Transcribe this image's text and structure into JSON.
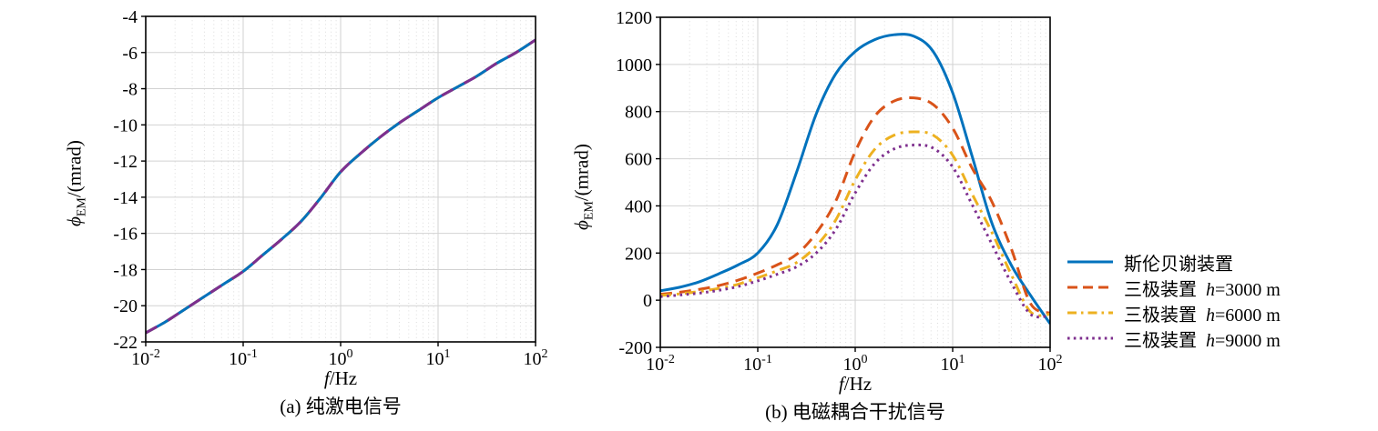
{
  "colors": {
    "blue": "#0072BD",
    "orange": "#D95319",
    "yellow": "#EDB120",
    "purple": "#7E2F8E",
    "axis": "#000000",
    "grid_major": "#d2d2d2",
    "grid_minor": "#dcdcdc"
  },
  "chart_data": [
    {
      "id": "a",
      "type": "line",
      "caption": "(a) 纯激电信号",
      "xlabel_italic": "f",
      "xlabel_rest": "/Hz",
      "ylabel_phi": "ϕ",
      "ylabel_sub": "EM",
      "ylabel_rest": "/(mrad)",
      "xscale": "log",
      "xlim_exp": [
        -2,
        2
      ],
      "ylim": [
        -22,
        -4
      ],
      "yticks": [
        -4,
        -6,
        -8,
        -10,
        -12,
        -14,
        -16,
        -18,
        -20,
        -22
      ],
      "xtick_exps": [
        -2,
        -1,
        0,
        1,
        2
      ],
      "grid": "major solid + minor dotted vertical",
      "x_log10": [
        -2,
        -1.8,
        -1.6,
        -1.4,
        -1.2,
        -1,
        -0.8,
        -0.6,
        -0.4,
        -0.2,
        0,
        0.2,
        0.4,
        0.6,
        0.8,
        1,
        1.2,
        1.4,
        1.6,
        1.8,
        2
      ],
      "note_overlap": "四条曲线重合",
      "draw_order": [
        1,
        2,
        0,
        3
      ],
      "style_overrides": {
        "3": {
          "dash": "14,14"
        }
      },
      "series": [
        {
          "name": "斯伦贝谢装置",
          "color": "#0072BD",
          "style": "solid",
          "values": [
            -21.5,
            -20.9,
            -20.2,
            -19.5,
            -18.8,
            -18.1,
            -17.2,
            -16.3,
            -15.3,
            -14,
            -12.6,
            -11.6,
            -10.7,
            -9.9,
            -9.2,
            -8.5,
            -7.9,
            -7.3,
            -6.6,
            -6,
            -5.3
          ]
        },
        {
          "name": "三极装置 h=3000 m",
          "color": "#D95319",
          "style": "dashed",
          "values": [
            -21.5,
            -20.9,
            -20.2,
            -19.5,
            -18.8,
            -18.1,
            -17.2,
            -16.3,
            -15.3,
            -14,
            -12.6,
            -11.6,
            -10.7,
            -9.9,
            -9.2,
            -8.5,
            -7.9,
            -7.3,
            -6.6,
            -6,
            -5.3
          ]
        },
        {
          "name": "三极装置 h=6000 m",
          "color": "#EDB120",
          "style": "dashdot",
          "values": [
            -21.5,
            -20.9,
            -20.2,
            -19.5,
            -18.8,
            -18.1,
            -17.2,
            -16.3,
            -15.3,
            -14,
            -12.6,
            -11.6,
            -10.7,
            -9.9,
            -9.2,
            -8.5,
            -7.9,
            -7.3,
            -6.6,
            -6,
            -5.3
          ]
        },
        {
          "name": "三极装置 h=9000 m",
          "color": "#7E2F8E",
          "style": "dotted",
          "values": [
            -21.5,
            -20.9,
            -20.2,
            -19.5,
            -18.8,
            -18.1,
            -17.2,
            -16.3,
            -15.3,
            -14,
            -12.6,
            -11.6,
            -10.7,
            -9.9,
            -9.2,
            -8.5,
            -7.9,
            -7.3,
            -6.6,
            -6,
            -5.3
          ]
        }
      ]
    },
    {
      "id": "b",
      "type": "line",
      "caption": "(b) 电磁耦合干扰信号",
      "xlabel_italic": "f",
      "xlabel_rest": "/Hz",
      "ylabel_phi": "ϕ",
      "ylabel_sub": "EM",
      "ylabel_rest": "/(mrad)",
      "xscale": "log",
      "xlim_exp": [
        -2,
        2
      ],
      "ylim": [
        -200,
        1200
      ],
      "yticks": [
        1200,
        1000,
        800,
        600,
        400,
        200,
        0,
        -200
      ],
      "xtick_exps": [
        -2,
        -1,
        0,
        1,
        2
      ],
      "grid": "major solid + minor dotted vertical",
      "x_log10": [
        -2,
        -1.8,
        -1.6,
        -1.4,
        -1.2,
        -1,
        -0.8,
        -0.6,
        -0.4,
        -0.2,
        0,
        0.2,
        0.4,
        0.6,
        0.8,
        1,
        1.2,
        1.4,
        1.6,
        1.8,
        2
      ],
      "series": [
        {
          "name": "斯伦贝谢装置",
          "color": "#0072BD",
          "style": "solid",
          "values": [
            40,
            55,
            78,
            112,
            150,
            200,
            320,
            545,
            790,
            960,
            1055,
            1105,
            1126,
            1120,
            1055,
            880,
            610,
            330,
            150,
            20,
            -100
          ]
        },
        {
          "name": "三极装置 h=3000 m",
          "color": "#D95319",
          "style": "dashed",
          "values": [
            25,
            34,
            46,
            62,
            85,
            115,
            150,
            195,
            285,
            420,
            630,
            780,
            845,
            858,
            830,
            730,
            560,
            420,
            220,
            -15,
            -55
          ]
        },
        {
          "name": "三极装置 h=6000 m",
          "color": "#EDB120",
          "style": "dashdot",
          "values": [
            20,
            27,
            37,
            50,
            68,
            95,
            125,
            160,
            230,
            340,
            510,
            640,
            700,
            714,
            700,
            615,
            450,
            290,
            110,
            -50,
            -60
          ]
        },
        {
          "name": "三极装置 h=9000 m",
          "color": "#7E2F8E",
          "style": "dotted",
          "values": [
            15,
            22,
            30,
            42,
            58,
            82,
            110,
            142,
            200,
            300,
            455,
            580,
            642,
            658,
            645,
            565,
            405,
            240,
            75,
            -60,
            -65
          ]
        }
      ]
    }
  ],
  "legend": {
    "position": "right of chart b",
    "items": [
      {
        "label_cn": "斯伦贝谢装置",
        "h_var": "",
        "h_val": "",
        "color": "#0072BD",
        "style": "solid"
      },
      {
        "label_cn": "三极装置",
        "h_var": "h",
        "h_val": "=3000 m",
        "color": "#D95319",
        "style": "dashed"
      },
      {
        "label_cn": "三极装置",
        "h_var": "h",
        "h_val": "=6000 m",
        "color": "#EDB120",
        "style": "dashdot"
      },
      {
        "label_cn": "三极装置",
        "h_var": "h",
        "h_val": "=9000 m",
        "color": "#7E2F8E",
        "style": "dotted"
      }
    ]
  }
}
